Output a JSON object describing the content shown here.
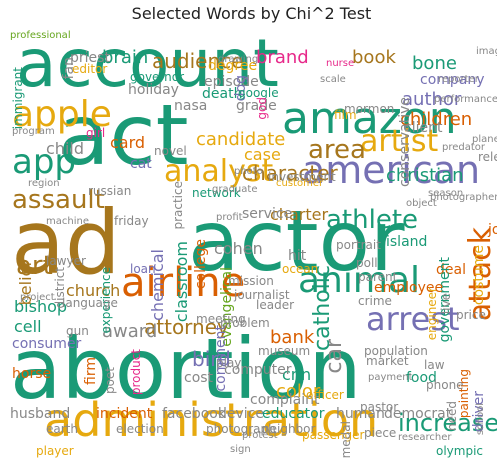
{
  "title": "Selected Words by Chi^2 Test",
  "palette": {
    "teal": "#1a9a76",
    "gold": "#e6a90f",
    "purple": "#7570b3",
    "orange": "#d95f02",
    "olive": "#a6761d",
    "pink": "#e7298a",
    "green": "#66a61e",
    "grey": "#888888"
  },
  "words": [
    {
      "text": "account",
      "color": "teal"
    },
    {
      "text": "act",
      "color": "teal"
    },
    {
      "text": "ad",
      "color": "olive"
    },
    {
      "text": "actor",
      "color": "teal"
    },
    {
      "text": "abortion",
      "color": "teal"
    },
    {
      "text": "administration",
      "color": "gold"
    },
    {
      "text": "amazon",
      "color": "teal"
    },
    {
      "text": "airline",
      "color": "orange"
    },
    {
      "text": "american",
      "color": "purple"
    },
    {
      "text": "apple",
      "color": "gold"
    },
    {
      "text": "animal",
      "color": "teal"
    },
    {
      "text": "arrest",
      "color": "purple"
    },
    {
      "text": "artist",
      "color": "gold"
    },
    {
      "text": "area",
      "color": "olive"
    },
    {
      "text": "analyst",
      "color": "gold"
    },
    {
      "text": "assault",
      "color": "olive"
    },
    {
      "text": "app",
      "color": "teal"
    },
    {
      "text": "athlete",
      "color": "teal"
    },
    {
      "text": "attack",
      "color": "orange"
    },
    {
      "text": "art",
      "color": "olive"
    },
    {
      "text": "audience",
      "color": "olive"
    },
    {
      "text": "brand",
      "color": "pink"
    },
    {
      "text": "book",
      "color": "olive"
    },
    {
      "text": "bone",
      "color": "teal"
    },
    {
      "text": "brain",
      "color": "teal"
    },
    {
      "text": "author",
      "color": "purple"
    },
    {
      "text": "children",
      "color": "orange"
    },
    {
      "text": "company",
      "color": "purple"
    },
    {
      "text": "character",
      "color": "olive"
    },
    {
      "text": "christian",
      "color": "teal"
    },
    {
      "text": "client",
      "color": "grey"
    },
    {
      "text": "candidate",
      "color": "gold"
    },
    {
      "text": "card",
      "color": "orange"
    },
    {
      "text": "cat",
      "color": "purple"
    },
    {
      "text": "case",
      "color": "gold"
    },
    {
      "text": "child",
      "color": "grey"
    },
    {
      "text": "charter",
      "color": "olive"
    },
    {
      "text": "cohen",
      "color": "grey"
    },
    {
      "text": "catholic",
      "color": "teal"
    },
    {
      "text": "church",
      "color": "olive"
    },
    {
      "text": "bishop",
      "color": "teal"
    },
    {
      "text": "belief",
      "color": "olive"
    },
    {
      "text": "cell",
      "color": "teal"
    },
    {
      "text": "attorney",
      "color": "olive"
    },
    {
      "text": "award",
      "color": "grey"
    },
    {
      "text": "bank",
      "color": "orange"
    },
    {
      "text": "bird",
      "color": "purple"
    },
    {
      "text": "car",
      "color": "grey"
    },
    {
      "text": "cnn",
      "color": "teal"
    },
    {
      "text": "color",
      "color": "gold"
    },
    {
      "text": "computer",
      "color": "grey"
    },
    {
      "text": "food",
      "color": "teal"
    },
    {
      "text": "island",
      "color": "teal"
    },
    {
      "text": "deal",
      "color": "orange"
    },
    {
      "text": "government",
      "color": "teal"
    },
    {
      "text": "costume",
      "color": "gold"
    },
    {
      "text": "employee",
      "color": "orange"
    },
    {
      "text": "crime",
      "color": "grey"
    },
    {
      "text": "live",
      "color": "grey"
    },
    {
      "text": "price",
      "color": "grey"
    },
    {
      "text": "engineer",
      "color": "gold"
    },
    {
      "text": "increase",
      "color": "teal"
    },
    {
      "text": "husband",
      "color": "grey"
    },
    {
      "text": "incident",
      "color": "orange"
    },
    {
      "text": "facebook",
      "color": "grey"
    },
    {
      "text": "device",
      "color": "grey"
    },
    {
      "text": "educator",
      "color": "teal"
    },
    {
      "text": "human",
      "color": "grey"
    },
    {
      "text": "democrat",
      "color": "grey"
    },
    {
      "text": "chemical",
      "color": "purple"
    },
    {
      "text": "classroom",
      "color": "teal"
    },
    {
      "text": "college",
      "color": "orange"
    },
    {
      "text": "evangelical",
      "color": "green"
    },
    {
      "text": "comment",
      "color": "purple"
    },
    {
      "text": "complaint",
      "color": "grey"
    },
    {
      "text": "cost",
      "color": "grey"
    },
    {
      "text": "horse",
      "color": "orange"
    },
    {
      "text": "firm",
      "color": "orange"
    },
    {
      "text": "poet",
      "color": "grey"
    },
    {
      "text": "earth",
      "color": "grey"
    },
    {
      "text": "election",
      "color": "grey"
    },
    {
      "text": "photograph",
      "color": "grey"
    },
    {
      "text": "neighbor",
      "color": "grey"
    },
    {
      "text": "player",
      "color": "gold"
    },
    {
      "text": "olympic",
      "color": "teal"
    },
    {
      "text": "driver",
      "color": "purple"
    },
    {
      "text": "school",
      "color": "grey"
    },
    {
      "text": "hit",
      "color": "grey"
    },
    {
      "text": "ocean",
      "color": "gold"
    },
    {
      "text": "parent",
      "color": "grey"
    },
    {
      "text": "poll",
      "color": "grey"
    },
    {
      "text": "job",
      "color": "orange"
    },
    {
      "text": "consumer",
      "color": "purple"
    },
    {
      "text": "experience",
      "color": "teal"
    },
    {
      "text": "district",
      "color": "grey"
    },
    {
      "text": "lawyer",
      "color": "grey"
    },
    {
      "text": "loan",
      "color": "purple"
    },
    {
      "text": "gun",
      "color": "grey"
    },
    {
      "text": "language",
      "color": "grey"
    },
    {
      "text": "journalist",
      "color": "grey"
    },
    {
      "text": "mission",
      "color": "grey"
    },
    {
      "text": "service",
      "color": "grey"
    },
    {
      "text": "network",
      "color": "teal"
    },
    {
      "text": "russian",
      "color": "grey"
    },
    {
      "text": "friday",
      "color": "grey"
    },
    {
      "text": "novel",
      "color": "grey"
    },
    {
      "text": "girl",
      "color": "pink"
    },
    {
      "text": "nasa",
      "color": "grey"
    },
    {
      "text": "grade",
      "color": "grey"
    },
    {
      "text": "film",
      "color": "gold"
    },
    {
      "text": "conservative",
      "color": "grey"
    },
    {
      "text": "governor",
      "color": "teal"
    },
    {
      "text": "holiday",
      "color": "grey"
    },
    {
      "text": "episode",
      "color": "grey"
    },
    {
      "text": "death",
      "color": "teal"
    },
    {
      "text": "degree",
      "color": "gold"
    },
    {
      "text": "dog",
      "color": "purple"
    },
    {
      "text": "google",
      "color": "teal"
    },
    {
      "text": "priest",
      "color": "grey"
    },
    {
      "text": "editor",
      "color": "gold"
    },
    {
      "text": "fan",
      "color": "grey"
    },
    {
      "text": "immigrant",
      "color": "teal"
    },
    {
      "text": "drawing",
      "color": "grey"
    },
    {
      "text": "image",
      "color": "grey"
    },
    {
      "text": "planet",
      "color": "grey"
    },
    {
      "text": "performance",
      "color": "grey"
    },
    {
      "text": "mormon",
      "color": "grey"
    },
    {
      "text": "god",
      "color": "pink"
    },
    {
      "text": "investment",
      "color": "grey"
    },
    {
      "text": "customer",
      "color": "gold"
    },
    {
      "text": "photo",
      "color": "grey"
    },
    {
      "text": "practice",
      "color": "grey"
    },
    {
      "text": "graduate",
      "color": "grey"
    },
    {
      "text": "profit",
      "color": "grey"
    },
    {
      "text": "portrait",
      "color": "grey"
    },
    {
      "text": "leader",
      "color": "grey"
    },
    {
      "text": "meeting",
      "color": "grey"
    },
    {
      "text": "problem",
      "color": "grey"
    },
    {
      "text": "museum",
      "color": "grey"
    },
    {
      "text": "play",
      "color": "grey"
    },
    {
      "text": "law",
      "color": "grey"
    },
    {
      "text": "population",
      "color": "grey"
    },
    {
      "text": "market",
      "color": "grey"
    },
    {
      "text": "product",
      "color": "pink"
    },
    {
      "text": "painting",
      "color": "orange"
    },
    {
      "text": "officer",
      "color": "gold"
    },
    {
      "text": "pastor",
      "color": "grey"
    },
    {
      "text": "phone",
      "color": "grey"
    },
    {
      "text": "need",
      "color": "grey"
    },
    {
      "text": "passenger",
      "color": "gold"
    },
    {
      "text": "piece",
      "color": "grey"
    },
    {
      "text": "medal",
      "color": "grey"
    },
    {
      "text": "payment",
      "color": "grey"
    },
    {
      "text": "researcher",
      "color": "grey"
    },
    {
      "text": "protest",
      "color": "grey"
    },
    {
      "text": "sign",
      "color": "grey"
    },
    {
      "text": "nurse",
      "color": "pink"
    },
    {
      "text": "scale",
      "color": "grey"
    },
    {
      "text": "reporter",
      "color": "grey"
    },
    {
      "text": "release",
      "color": "grey"
    },
    {
      "text": "predator",
      "color": "grey"
    },
    {
      "text": "object",
      "color": "grey"
    },
    {
      "text": "season",
      "color": "grey"
    },
    {
      "text": "region",
      "color": "grey"
    },
    {
      "text": "program",
      "color": "grey"
    },
    {
      "text": "machine",
      "color": "grey"
    },
    {
      "text": "photographer",
      "color": "grey"
    },
    {
      "text": "project",
      "color": "grey"
    },
    {
      "text": "professional",
      "color": "green"
    }
  ]
}
